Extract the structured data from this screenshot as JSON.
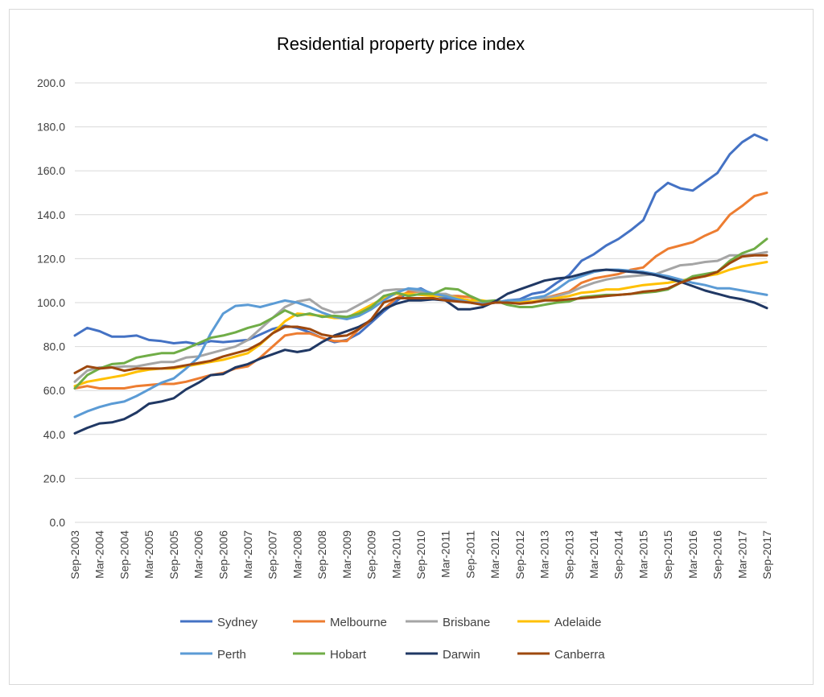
{
  "chart_data": {
    "type": "line",
    "title": "Residential property price index",
    "xlabel": "",
    "ylabel": "",
    "ylim": [
      0,
      200
    ],
    "yticks": [
      "0.0",
      "20.0",
      "40.0",
      "60.0",
      "80.0",
      "100.0",
      "120.0",
      "140.0",
      "160.0",
      "180.0",
      "200.0"
    ],
    "grid": true,
    "legend_position": "bottom",
    "x": [
      "Sep-2003",
      "Dec-2003",
      "Mar-2004",
      "Jun-2004",
      "Sep-2004",
      "Dec-2004",
      "Mar-2005",
      "Jun-2005",
      "Sep-2005",
      "Dec-2005",
      "Mar-2006",
      "Jun-2006",
      "Sep-2006",
      "Dec-2006",
      "Mar-2007",
      "Jun-2007",
      "Sep-2007",
      "Dec-2007",
      "Mar-2008",
      "Jun-2008",
      "Sep-2008",
      "Dec-2008",
      "Mar-2009",
      "Jun-2009",
      "Sep-2009",
      "Dec-2009",
      "Mar-2010",
      "Jun-2010",
      "Sep-2010",
      "Dec-2010",
      "Mar-2011",
      "Jun-2011",
      "Sep-2011",
      "Dec-2011",
      "Mar-2012",
      "Jun-2012",
      "Sep-2012",
      "Dec-2012",
      "Mar-2013",
      "Jun-2013",
      "Sep-2013",
      "Dec-2013",
      "Mar-2014",
      "Jun-2014",
      "Sep-2014",
      "Dec-2014",
      "Mar-2015",
      "Jun-2015",
      "Sep-2015",
      "Dec-2015",
      "Mar-2016",
      "Jun-2016",
      "Sep-2016",
      "Dec-2016",
      "Mar-2017",
      "Jun-2017",
      "Sep-2017"
    ],
    "x_tick_labels": [
      "Sep-2003",
      "Mar-2004",
      "Sep-2004",
      "Mar-2005",
      "Sep-2005",
      "Mar-2006",
      "Sep-2006",
      "Mar-2007",
      "Sep-2007",
      "Mar-2008",
      "Sep-2008",
      "Mar-2009",
      "Sep-2009",
      "Mar-2010",
      "Sep-2010",
      "Mar-2011",
      "Sep-2011",
      "Mar-2012",
      "Sep-2012",
      "Mar-2013",
      "Sep-2013",
      "Mar-2014",
      "Sep-2014",
      "Mar-2015",
      "Sep-2015",
      "Mar-2016",
      "Sep-2016",
      "Mar-2017",
      "Sep-2017"
    ],
    "series": [
      {
        "name": "Sydney",
        "color": "#4472c4",
        "values": [
          85,
          88.5,
          87,
          84.5,
          84.5,
          85,
          83,
          82.5,
          81.5,
          82,
          81,
          82.5,
          82,
          82.5,
          83,
          85.5,
          88,
          89.5,
          88.5,
          86.5,
          84,
          82,
          83,
          86,
          91,
          96,
          100.5,
          105,
          106.5,
          103.5,
          102,
          101,
          100,
          99.5,
          100,
          101,
          101.5,
          104,
          105,
          109,
          112.5,
          119,
          122,
          126,
          129,
          133,
          137.5,
          150,
          154.5,
          152,
          151,
          155,
          159,
          167.5,
          173,
          176.5,
          174
        ]
      },
      {
        "name": "Melbourne",
        "color": "#ed7d31",
        "values": [
          61,
          62,
          61,
          61,
          61,
          62,
          62.5,
          63,
          63,
          64,
          65.5,
          67,
          68,
          70,
          71,
          75,
          80,
          85,
          86,
          86,
          84,
          82.5,
          82.5,
          88,
          92,
          97,
          102,
          105,
          105,
          104,
          103,
          103,
          102.5,
          100,
          101,
          100,
          100,
          102,
          102,
          103.5,
          105,
          109,
          111,
          112,
          113,
          115,
          116,
          121,
          124.5,
          126,
          127.5,
          130.5,
          133,
          140,
          144,
          148.5,
          150
        ]
      },
      {
        "name": "Brisbane",
        "color": "#a5a5a5",
        "values": [
          64,
          69,
          70.5,
          70.5,
          71,
          71,
          72,
          73,
          73,
          75,
          75.5,
          77,
          78.5,
          80,
          83,
          88,
          93,
          98,
          100.5,
          101.5,
          97.5,
          95.5,
          96,
          99,
          102,
          105.5,
          106,
          106,
          105,
          104,
          104,
          102,
          101,
          100,
          100,
          100,
          100,
          102,
          102,
          103,
          104.5,
          107,
          109,
          110.5,
          111.5,
          112,
          112.5,
          113,
          115,
          117,
          117.5,
          118.5,
          119,
          121.5,
          121.5,
          122,
          123
        ]
      },
      {
        "name": "Adelaide",
        "color": "#ffc000",
        "values": [
          62,
          64,
          65,
          66,
          67,
          68.5,
          69.5,
          70,
          70,
          71,
          72,
          73,
          74,
          75.5,
          77,
          81,
          86,
          91.5,
          95,
          94.5,
          94,
          93,
          93,
          96,
          99,
          102,
          104,
          104,
          103.5,
          103,
          103,
          102,
          101,
          101,
          100,
          100,
          100,
          100.5,
          101,
          102,
          103,
          104.5,
          105,
          106,
          106,
          107,
          108,
          108.5,
          109,
          110,
          111,
          112,
          113,
          115,
          116.5,
          117.5,
          118.5
        ]
      },
      {
        "name": "Perth",
        "color": "#5b9bd5",
        "values": [
          48,
          50.5,
          52.5,
          54,
          55,
          57.5,
          60.5,
          63.5,
          65.5,
          70,
          75,
          86,
          95,
          98.5,
          99,
          98,
          99.5,
          101,
          100,
          98,
          95.5,
          93.5,
          92.5,
          94,
          97,
          101,
          104.5,
          106.5,
          106,
          104,
          103,
          101.5,
          100,
          99.5,
          100,
          101,
          101,
          102,
          103,
          106,
          110,
          112,
          114,
          115,
          115,
          114.5,
          114,
          113,
          112,
          110.5,
          109,
          108,
          106.5,
          106.5,
          105.5,
          104.5,
          103.5
        ]
      },
      {
        "name": "Hobart",
        "color": "#70ad47",
        "values": [
          61,
          67,
          70,
          72,
          72.5,
          75,
          76,
          77,
          77,
          79,
          81.5,
          84,
          85,
          86.5,
          88.5,
          90,
          93,
          96.5,
          94,
          95,
          93.5,
          94,
          93.5,
          95,
          98,
          103,
          104.5,
          103,
          104,
          104,
          106.5,
          106,
          103,
          100.5,
          101,
          99,
          98,
          98,
          99,
          100,
          100.5,
          102.5,
          103,
          103.5,
          103.5,
          104,
          104.5,
          105,
          106,
          109,
          112,
          113,
          114,
          119,
          122.5,
          124.5,
          129
        ]
      },
      {
        "name": "Darwin",
        "color": "#203864",
        "values": [
          40.5,
          43,
          45,
          45.5,
          47,
          50,
          54,
          55,
          56.5,
          60.5,
          63.5,
          67,
          67.5,
          70.5,
          72,
          74.5,
          76.5,
          78.5,
          77.5,
          78.5,
          82,
          85,
          87,
          89,
          92,
          97,
          99.5,
          101,
          101,
          101.5,
          101,
          97,
          97,
          98,
          100.5,
          104,
          106,
          108,
          110,
          111,
          111.5,
          113,
          114.5,
          115,
          114.5,
          114,
          113.5,
          112.5,
          111,
          109.5,
          107.5,
          105.5,
          104,
          102.5,
          101.5,
          100,
          97.5
        ]
      },
      {
        "name": "Canberra",
        "color": "#9e480e",
        "values": [
          68,
          71,
          70,
          70.5,
          69,
          70,
          70,
          70,
          70.5,
          71.5,
          72.5,
          73.5,
          75.5,
          77,
          78.5,
          81.5,
          86,
          89,
          89,
          88,
          85.5,
          84.5,
          85,
          88,
          92.5,
          100,
          102,
          102,
          102,
          102,
          101,
          100.5,
          100,
          99,
          100,
          100,
          99.5,
          100,
          101,
          101,
          101.5,
          102,
          102.5,
          103,
          103.5,
          104,
          105,
          105.5,
          106.5,
          109,
          111,
          112,
          114,
          118,
          121,
          121.5,
          121.5
        ]
      }
    ]
  }
}
